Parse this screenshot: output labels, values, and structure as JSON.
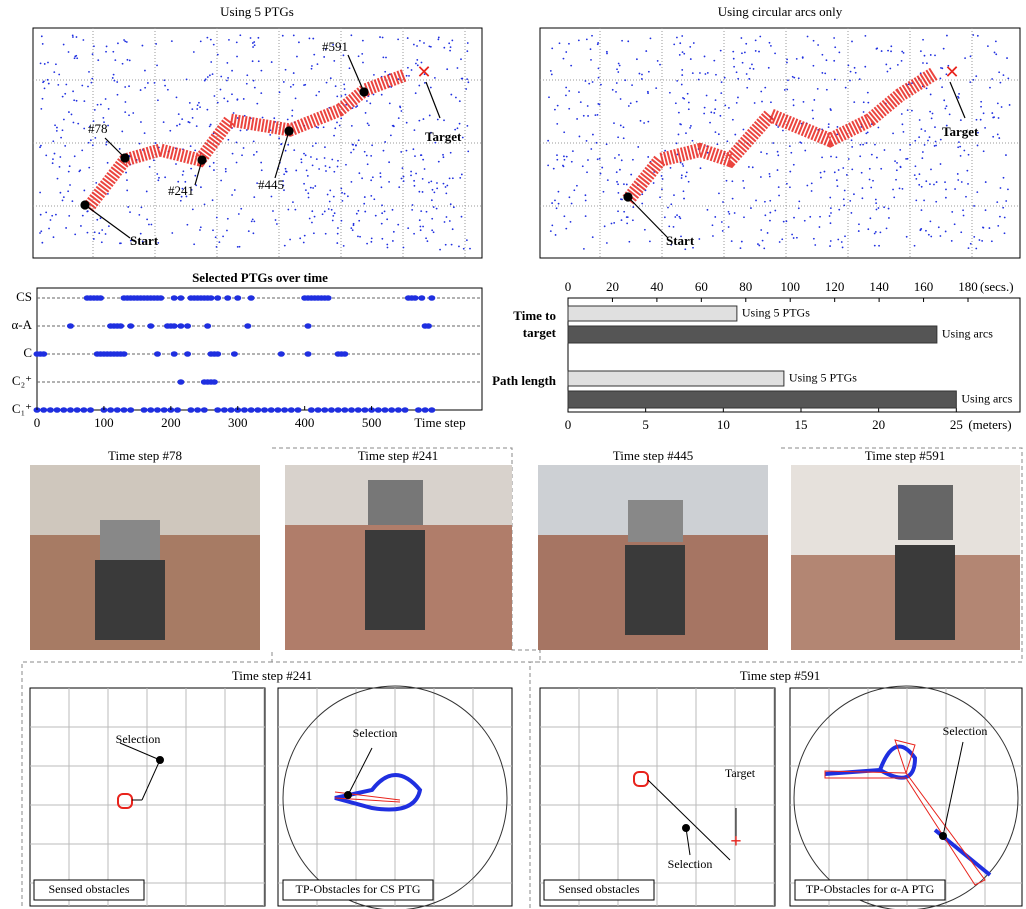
{
  "maps": [
    {
      "title": "Using 5 PTGs",
      "labels": [
        "#591",
        "#78",
        "#241",
        "#445",
        "Target",
        "Start"
      ]
    },
    {
      "title": "Using circular arcs only",
      "labels": [
        "Target",
        "Start"
      ]
    }
  ],
  "chart_data": [
    {
      "type": "strip",
      "title": "Selected PTGs over time",
      "xlabel": "Time step",
      "categories": [
        "CS",
        "α-A",
        "C",
        "C₂⁺",
        "C₁⁺"
      ],
      "color": "#1f2fe0",
      "x_by_category": [
        [
          75,
          80,
          85,
          90,
          95,
          130,
          135,
          140,
          145,
          150,
          155,
          160,
          165,
          170,
          175,
          180,
          185,
          205,
          215,
          230,
          235,
          240,
          245,
          250,
          255,
          260,
          270,
          285,
          300,
          320,
          400,
          405,
          410,
          415,
          420,
          425,
          430,
          435,
          555,
          560,
          565,
          575,
          590
        ],
        [
          50,
          110,
          115,
          120,
          125,
          140,
          170,
          195,
          200,
          205,
          215,
          225,
          255,
          315,
          405,
          580,
          585
        ],
        [
          0,
          5,
          10,
          90,
          95,
          100,
          105,
          110,
          115,
          120,
          125,
          130,
          180,
          205,
          225,
          260,
          265,
          270,
          295,
          365,
          405,
          450,
          455,
          460
        ],
        [
          215,
          250,
          255,
          260,
          265
        ],
        [
          0,
          10,
          20,
          30,
          40,
          50,
          60,
          70,
          80,
          100,
          110,
          120,
          130,
          140,
          160,
          170,
          180,
          190,
          200,
          210,
          230,
          240,
          250,
          270,
          280,
          290,
          300,
          310,
          320,
          330,
          340,
          350,
          360,
          370,
          380,
          390,
          410,
          420,
          430,
          440,
          450,
          460,
          470,
          480,
          490,
          500,
          510,
          520,
          530,
          540,
          550,
          570,
          580,
          590
        ]
      ],
      "xlim": [
        0,
        665
      ],
      "xticks": [
        0,
        100,
        200,
        300,
        400,
        500
      ]
    },
    {
      "type": "barh",
      "categories": [
        "Time to target",
        "Path length"
      ],
      "series": [
        {
          "name": "Using 5 PTGs",
          "color": "#e0e0e0"
        },
        {
          "name": "Using arcs",
          "color": "#555555"
        }
      ],
      "values": [
        [
          76,
          166
        ],
        [
          13.9,
          25
        ]
      ],
      "axes": [
        {
          "label": "(secs.)",
          "xlim": [
            0,
            203.4
          ],
          "xticks": [
            0,
            20,
            40,
            60,
            80,
            100,
            120,
            140,
            160,
            180
          ]
        },
        {
          "label": "(meters)",
          "xlim": [
            0,
            29.1
          ],
          "xticks": [
            0,
            5,
            10,
            15,
            20,
            25
          ]
        }
      ]
    }
  ],
  "photos": [
    "Time step #78",
    "Time step #241",
    "Time step #445",
    "Time step #591"
  ],
  "details": [
    {
      "title": "Time step #241",
      "labels": [
        "Selection"
      ],
      "panels": [
        "Sensed obstacles",
        "TP-Obstacles for CS PTG"
      ]
    },
    {
      "title": "Time step #591",
      "labels": [
        "Target",
        "Selection"
      ],
      "panels": [
        "Sensed obstacles",
        "TP-Obstacles for α-A PTG"
      ]
    }
  ]
}
